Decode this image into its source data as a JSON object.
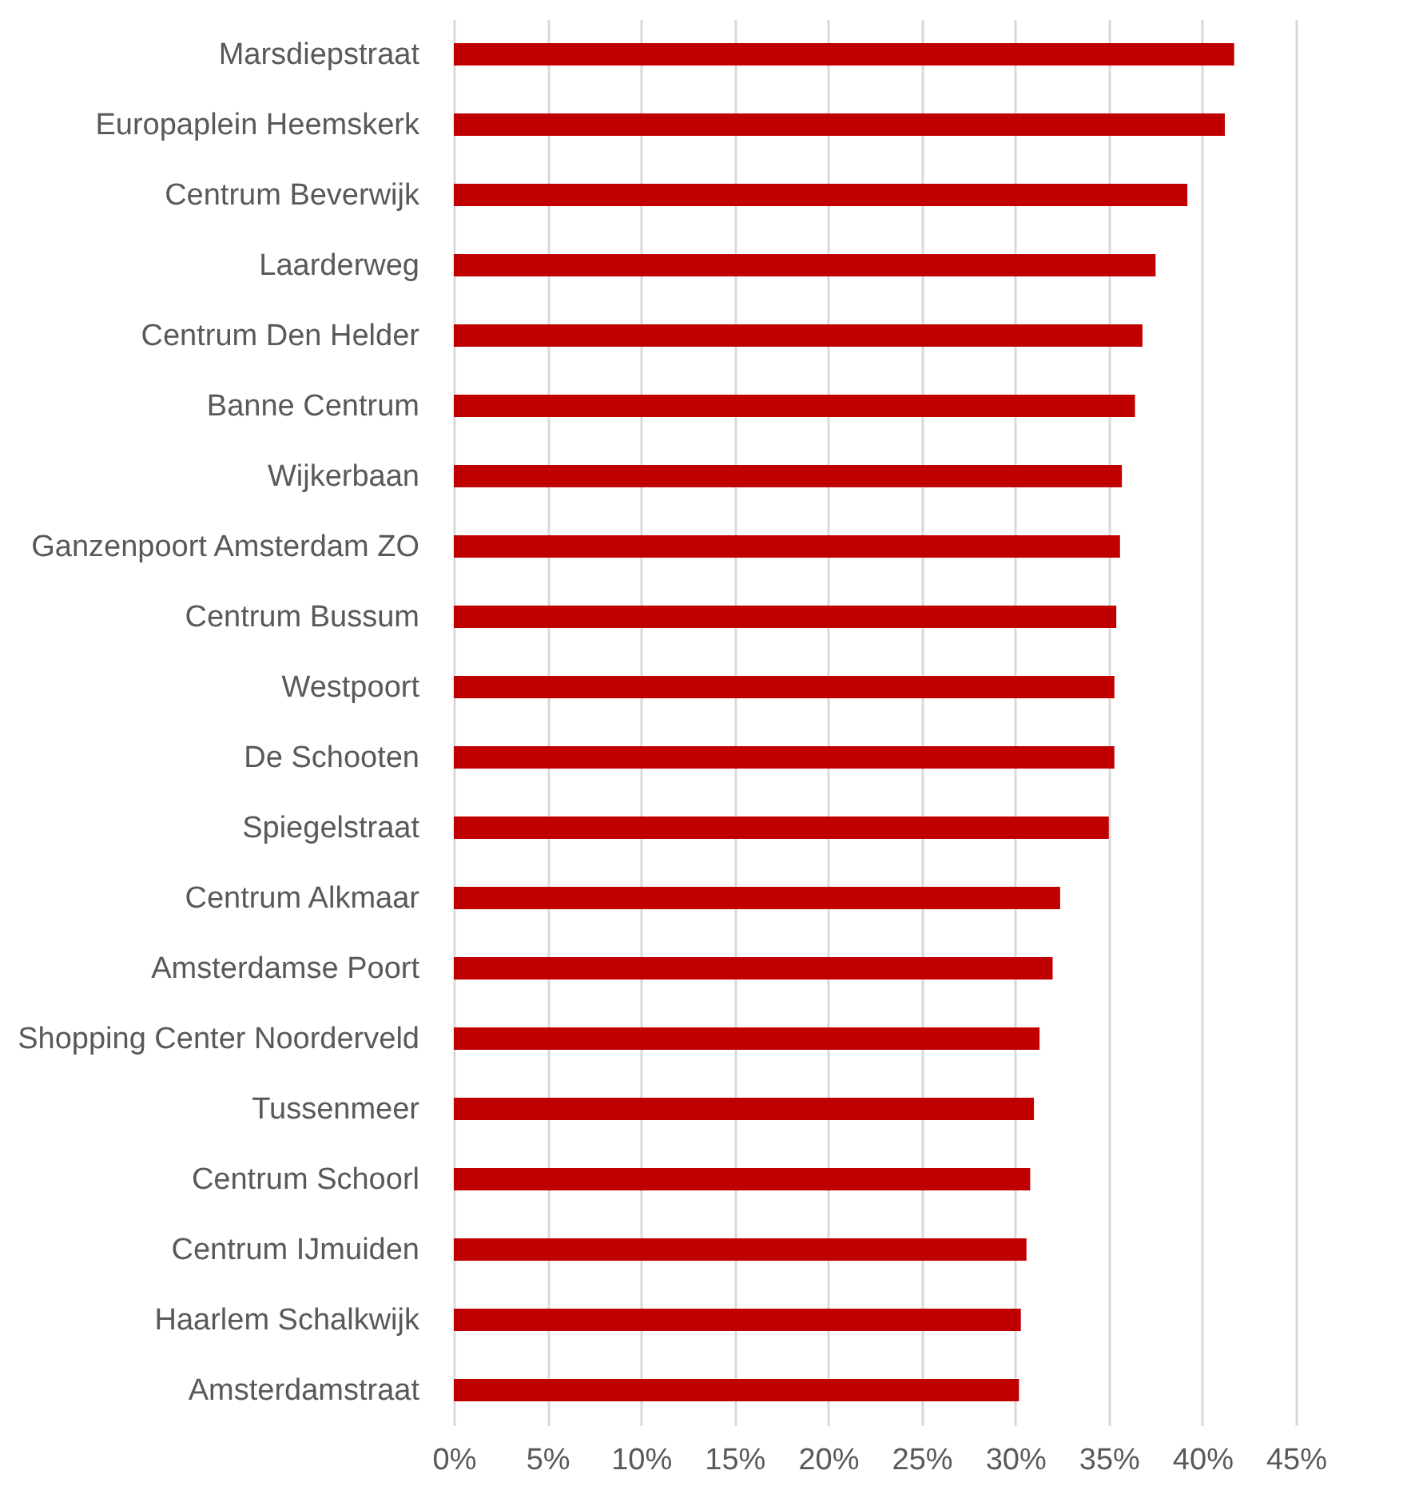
{
  "chart_data": {
    "type": "bar",
    "orientation": "horizontal",
    "color": "#c00000",
    "categories": [
      "Marsdiepstraat",
      "Europaplein Heemskerk",
      "Centrum Beverwijk",
      "Laarderweg",
      "Centrum Den Helder",
      "Banne Centrum",
      "Wijkerbaan",
      "Ganzenpoort Amsterdam ZO",
      "Centrum Bussum",
      "Westpoort",
      "De Schooten",
      "Spiegelstraat",
      "Centrum Alkmaar",
      "Amsterdamse Poort",
      "Shopping Center Noorderveld",
      "Tussenmeer",
      "Centrum Schoorl",
      "Centrum IJmuiden",
      "Haarlem Schalkwijk",
      "Amsterdamstraat"
    ],
    "values": [
      41.7,
      41.2,
      39.2,
      37.5,
      36.8,
      36.4,
      35.7,
      35.6,
      35.4,
      35.3,
      35.3,
      35.0,
      32.4,
      32.0,
      31.3,
      31.0,
      30.8,
      30.6,
      30.3,
      30.2
    ],
    "xlim": [
      0,
      45
    ],
    "xticks": [
      {
        "value": 0,
        "label": "0%"
      },
      {
        "value": 5,
        "label": "5%"
      },
      {
        "value": 10,
        "label": "10%"
      },
      {
        "value": 15,
        "label": "15%"
      },
      {
        "value": 20,
        "label": "20%"
      },
      {
        "value": 25,
        "label": "25%"
      },
      {
        "value": 30,
        "label": "30%"
      },
      {
        "value": 35,
        "label": "35%"
      },
      {
        "value": 40,
        "label": "40%"
      },
      {
        "value": 45,
        "label": "45%"
      }
    ],
    "grid": "x"
  }
}
